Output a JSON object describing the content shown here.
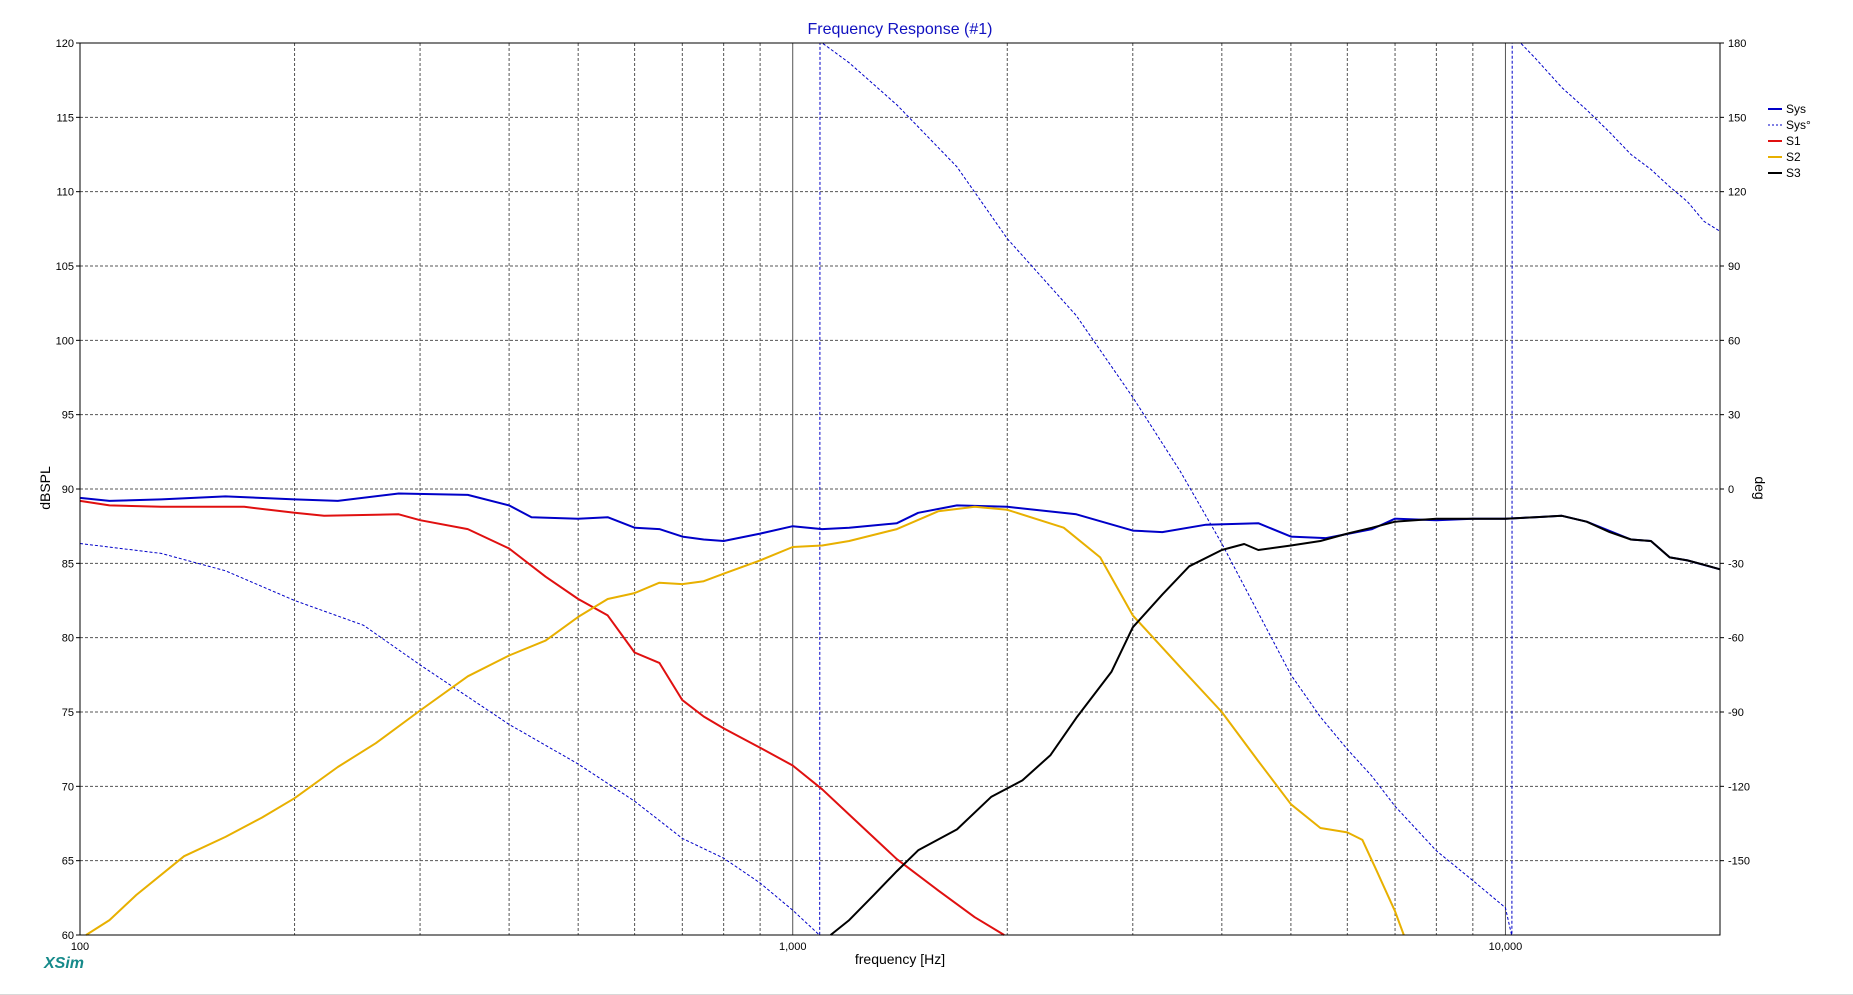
{
  "app": {
    "brand": "XSim"
  },
  "colors": {
    "title": "#1010c0",
    "brand": "#168a8a",
    "Sys": "#0000c8",
    "Sys_phase": "#0000c8",
    "S1": "#e01010",
    "S2": "#e8b000",
    "S3": "#000000",
    "grid": "#555555"
  },
  "chart_data": {
    "type": "line",
    "title": "Frequency Response (#1)",
    "xlabel": "frequency [Hz]",
    "ylabel": "dBSPL",
    "y2label": "deg",
    "xscale": "log",
    "xlim": [
      100,
      20000
    ],
    "ylim": [
      60,
      120
    ],
    "y2lim": [
      -180,
      180
    ],
    "x_major_ticks": [
      100,
      1000,
      10000
    ],
    "x_tick_labels": [
      "100",
      "1,000",
      "10,000"
    ],
    "y_ticks": [
      120,
      115,
      110,
      105,
      100,
      95,
      90,
      85,
      80,
      75,
      70,
      65,
      60
    ],
    "y2_ticks": [
      180,
      150,
      120,
      90,
      60,
      30,
      0,
      -30,
      -60,
      -90,
      -120,
      -150
    ],
    "grid": true,
    "legend_position": "right",
    "legend": [
      "Sys",
      "Sys°",
      "S1",
      "S2",
      "S3"
    ],
    "series": [
      {
        "name": "Sys",
        "axis": "left",
        "style": "solid",
        "points": [
          [
            100,
            89.4
          ],
          [
            110,
            89.2
          ],
          [
            130,
            89.3
          ],
          [
            160,
            89.5
          ],
          [
            200,
            89.3
          ],
          [
            230,
            89.2
          ],
          [
            280,
            89.7
          ],
          [
            350,
            89.6
          ],
          [
            400,
            88.9
          ],
          [
            430,
            88.1
          ],
          [
            500,
            88.0
          ],
          [
            550,
            88.1
          ],
          [
            600,
            87.4
          ],
          [
            650,
            87.3
          ],
          [
            700,
            86.8
          ],
          [
            750,
            86.6
          ],
          [
            800,
            86.5
          ],
          [
            900,
            87.0
          ],
          [
            1000,
            87.5
          ],
          [
            1100,
            87.3
          ],
          [
            1200,
            87.4
          ],
          [
            1400,
            87.7
          ],
          [
            1500,
            88.4
          ],
          [
            1700,
            88.9
          ],
          [
            2000,
            88.8
          ],
          [
            2500,
            88.3
          ],
          [
            3000,
            87.2
          ],
          [
            3300,
            87.1
          ],
          [
            3800,
            87.6
          ],
          [
            4500,
            87.7
          ],
          [
            5000,
            86.8
          ],
          [
            5600,
            86.7
          ],
          [
            6500,
            87.3
          ],
          [
            7000,
            88.0
          ],
          [
            8000,
            87.9
          ],
          [
            9000,
            88.0
          ],
          [
            10000,
            88.0
          ],
          [
            11000,
            88.1
          ],
          [
            12000,
            88.2
          ],
          [
            13000,
            87.8
          ],
          [
            15000,
            86.6
          ],
          [
            16000,
            86.5
          ],
          [
            17000,
            85.4
          ],
          [
            18000,
            85.2
          ],
          [
            20000,
            84.6
          ]
        ]
      },
      {
        "name": "Sys°",
        "axis": "right",
        "style": "dashed",
        "points": [
          [
            100,
            -22
          ],
          [
            130,
            -26
          ],
          [
            160,
            -33
          ],
          [
            200,
            -45
          ],
          [
            250,
            -55
          ],
          [
            300,
            -71
          ],
          [
            400,
            -95
          ],
          [
            500,
            -111
          ],
          [
            600,
            -126
          ],
          [
            700,
            -141
          ],
          [
            800,
            -149
          ],
          [
            900,
            -159
          ],
          [
            1000,
            -170
          ],
          [
            1090,
            -180
          ],
          [
            1091,
            -180
          ],
          [
            1092,
            180
          ],
          [
            1100,
            180
          ],
          [
            1200,
            172
          ],
          [
            1400,
            155
          ],
          [
            1700,
            130
          ],
          [
            2000,
            101
          ],
          [
            2500,
            70
          ],
          [
            3000,
            37
          ],
          [
            3500,
            7
          ],
          [
            4000,
            -22
          ],
          [
            4500,
            -50
          ],
          [
            5000,
            -75
          ],
          [
            5500,
            -92
          ],
          [
            6000,
            -105
          ],
          [
            6500,
            -116
          ],
          [
            7000,
            -128
          ],
          [
            8000,
            -146
          ],
          [
            9000,
            -158
          ],
          [
            10000,
            -169
          ],
          [
            10200,
            -180
          ],
          [
            10210,
            -180
          ],
          [
            10220,
            180
          ],
          [
            10500,
            180
          ],
          [
            11000,
            174
          ],
          [
            12000,
            162
          ],
          [
            13000,
            153
          ],
          [
            14000,
            144
          ],
          [
            15000,
            135
          ],
          [
            16000,
            129
          ],
          [
            17000,
            122
          ],
          [
            18000,
            116
          ],
          [
            19000,
            108
          ],
          [
            20000,
            104
          ]
        ]
      },
      {
        "name": "S1",
        "axis": "left",
        "style": "solid",
        "points": [
          [
            100,
            89.2
          ],
          [
            110,
            88.9
          ],
          [
            130,
            88.8
          ],
          [
            150,
            88.8
          ],
          [
            170,
            88.8
          ],
          [
            200,
            88.4
          ],
          [
            220,
            88.2
          ],
          [
            280,
            88.3
          ],
          [
            300,
            87.9
          ],
          [
            350,
            87.3
          ],
          [
            400,
            86.0
          ],
          [
            450,
            84.1
          ],
          [
            500,
            82.6
          ],
          [
            550,
            81.5
          ],
          [
            600,
            79.0
          ],
          [
            650,
            78.3
          ],
          [
            700,
            75.8
          ],
          [
            750,
            74.7
          ],
          [
            800,
            73.9
          ],
          [
            900,
            72.6
          ],
          [
            1000,
            71.4
          ],
          [
            1100,
            69.8
          ],
          [
            1200,
            68.1
          ],
          [
            1400,
            65.1
          ],
          [
            1600,
            63.0
          ],
          [
            1800,
            61.2
          ],
          [
            1980,
            60.0
          ]
        ]
      },
      {
        "name": "S2",
        "axis": "left",
        "style": "solid",
        "points": [
          [
            102,
            60.0
          ],
          [
            110,
            61.0
          ],
          [
            120,
            62.7
          ],
          [
            140,
            65.3
          ],
          [
            160,
            66.6
          ],
          [
            180,
            67.9
          ],
          [
            200,
            69.2
          ],
          [
            230,
            71.3
          ],
          [
            260,
            72.9
          ],
          [
            300,
            75.1
          ],
          [
            350,
            77.4
          ],
          [
            400,
            78.8
          ],
          [
            450,
            79.8
          ],
          [
            500,
            81.4
          ],
          [
            550,
            82.6
          ],
          [
            600,
            83.0
          ],
          [
            650,
            83.7
          ],
          [
            700,
            83.6
          ],
          [
            750,
            83.8
          ],
          [
            800,
            84.3
          ],
          [
            900,
            85.2
          ],
          [
            1000,
            86.1
          ],
          [
            1100,
            86.2
          ],
          [
            1200,
            86.5
          ],
          [
            1400,
            87.3
          ],
          [
            1600,
            88.5
          ],
          [
            1800,
            88.8
          ],
          [
            2000,
            88.6
          ],
          [
            2400,
            87.4
          ],
          [
            2700,
            85.4
          ],
          [
            3000,
            81.5
          ],
          [
            3500,
            78.0
          ],
          [
            4000,
            75.0
          ],
          [
            4500,
            71.7
          ],
          [
            5000,
            68.8
          ],
          [
            5500,
            67.2
          ],
          [
            6000,
            66.9
          ],
          [
            6300,
            66.4
          ],
          [
            6600,
            64.3
          ],
          [
            7000,
            61.6
          ],
          [
            7200,
            60.0
          ]
        ]
      },
      {
        "name": "S3",
        "axis": "left",
        "style": "solid",
        "points": [
          [
            1130,
            60.0
          ],
          [
            1200,
            61.0
          ],
          [
            1300,
            62.7
          ],
          [
            1400,
            64.3
          ],
          [
            1500,
            65.7
          ],
          [
            1700,
            67.1
          ],
          [
            1900,
            69.3
          ],
          [
            2100,
            70.4
          ],
          [
            2300,
            72.1
          ],
          [
            2500,
            74.6
          ],
          [
            2800,
            77.7
          ],
          [
            3000,
            80.7
          ],
          [
            3300,
            82.9
          ],
          [
            3600,
            84.8
          ],
          [
            4000,
            85.9
          ],
          [
            4300,
            86.3
          ],
          [
            4500,
            85.9
          ],
          [
            5000,
            86.2
          ],
          [
            5500,
            86.5
          ],
          [
            6000,
            87.0
          ],
          [
            6500,
            87.4
          ],
          [
            7000,
            87.8
          ],
          [
            8000,
            88.0
          ],
          [
            9000,
            88.0
          ],
          [
            10000,
            88.0
          ],
          [
            11000,
            88.1
          ],
          [
            12000,
            88.2
          ],
          [
            13000,
            87.8
          ],
          [
            14000,
            87.1
          ],
          [
            15000,
            86.6
          ],
          [
            16000,
            86.5
          ],
          [
            17000,
            85.4
          ],
          [
            18000,
            85.2
          ],
          [
            19000,
            84.9
          ],
          [
            20000,
            84.6
          ]
        ]
      }
    ]
  }
}
